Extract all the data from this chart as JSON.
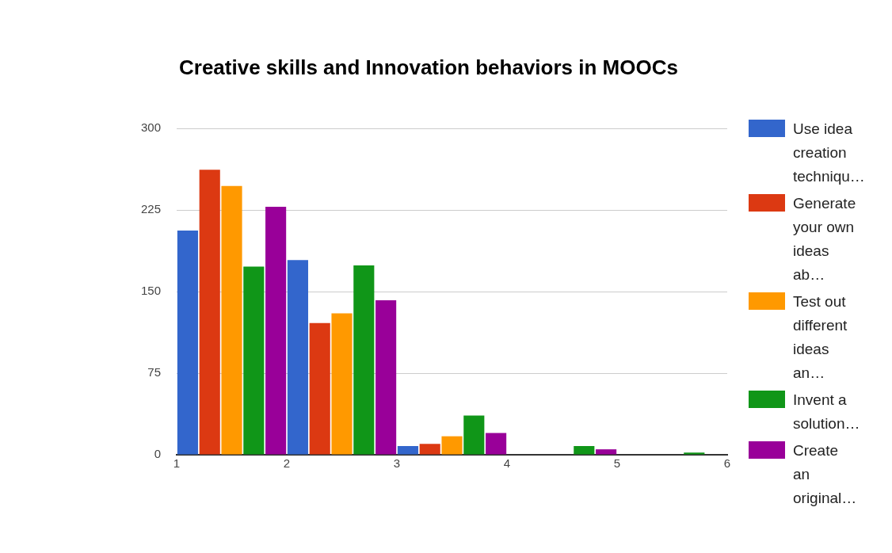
{
  "chart_data": {
    "type": "bar",
    "title": "Creative skills and Innovation behaviors in MOOCs",
    "x": [
      1.5,
      2.5,
      3.5,
      4.5,
      5.5
    ],
    "xlim": [
      1,
      6
    ],
    "xticks": [
      1,
      2,
      3,
      4,
      5,
      6
    ],
    "ylim": [
      0,
      300
    ],
    "yticks": [
      0,
      75,
      150,
      225,
      300
    ],
    "grid": "y",
    "legend": "right",
    "series": [
      {
        "name": "Use idea creation techniqu…",
        "color": "#3366cc",
        "values": [
          206,
          179,
          8,
          0,
          0
        ]
      },
      {
        "name": "Generate your own ideas ab…",
        "color": "#dc3912",
        "values": [
          262,
          121,
          10,
          0,
          0
        ]
      },
      {
        "name": "Test out different ideas an…",
        "color": "#ff9900",
        "values": [
          247,
          130,
          17,
          0,
          0
        ]
      },
      {
        "name": "Invent a solution…",
        "color": "#109618",
        "values": [
          173,
          174,
          36,
          8,
          2
        ]
      },
      {
        "name": "Create an original…",
        "color": "#990099",
        "values": [
          228,
          142,
          20,
          5,
          0
        ]
      }
    ]
  }
}
